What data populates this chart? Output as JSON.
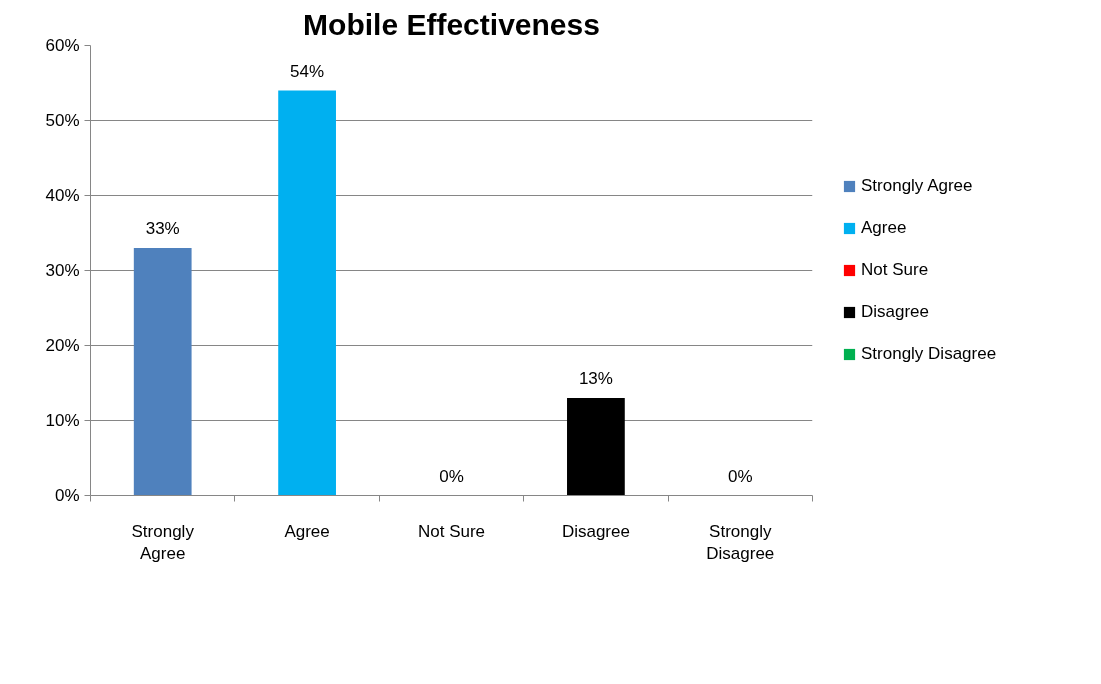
{
  "chart_data": {
    "type": "bar",
    "title": "Mobile Effectiveness",
    "categories": [
      "Strongly\nAgree",
      "Agree",
      "Not Sure",
      "Disagree",
      "Strongly\nDisagree"
    ],
    "series": [
      {
        "name": "Strongly Agree",
        "color": "#4f81bd",
        "values": [
          33,
          null,
          null,
          null,
          null
        ],
        "value_labels": [
          "33%",
          null,
          null,
          null,
          null
        ]
      },
      {
        "name": "Agree",
        "color": "#00b0f0",
        "values": [
          null,
          54,
          null,
          null,
          null
        ],
        "value_labels": [
          null,
          "54%",
          null,
          null,
          null
        ]
      },
      {
        "name": "Not Sure",
        "color": "#ff0000",
        "values": [
          null,
          null,
          0,
          null,
          null
        ],
        "value_labels": [
          null,
          null,
          "0%",
          null,
          null
        ]
      },
      {
        "name": "Disagree",
        "color": "#000000",
        "values": [
          null,
          null,
          null,
          13,
          null
        ],
        "value_labels": [
          null,
          null,
          null,
          "13%",
          null
        ]
      },
      {
        "name": "Strongly Disagree",
        "color": "#00b050",
        "values": [
          null,
          null,
          null,
          null,
          0
        ],
        "value_labels": [
          null,
          null,
          null,
          null,
          "0%"
        ]
      }
    ],
    "ylim": [
      0,
      60
    ],
    "yticks": [
      {
        "value": 0,
        "label": "0%"
      },
      {
        "value": 10,
        "label": "10%"
      },
      {
        "value": 20,
        "label": "20%"
      },
      {
        "value": 30,
        "label": "30%"
      },
      {
        "value": 40,
        "label": "40%"
      },
      {
        "value": 50,
        "label": "50%"
      },
      {
        "value": 60,
        "label": "60%"
      }
    ],
    "grid": "y",
    "legend": "right"
  }
}
